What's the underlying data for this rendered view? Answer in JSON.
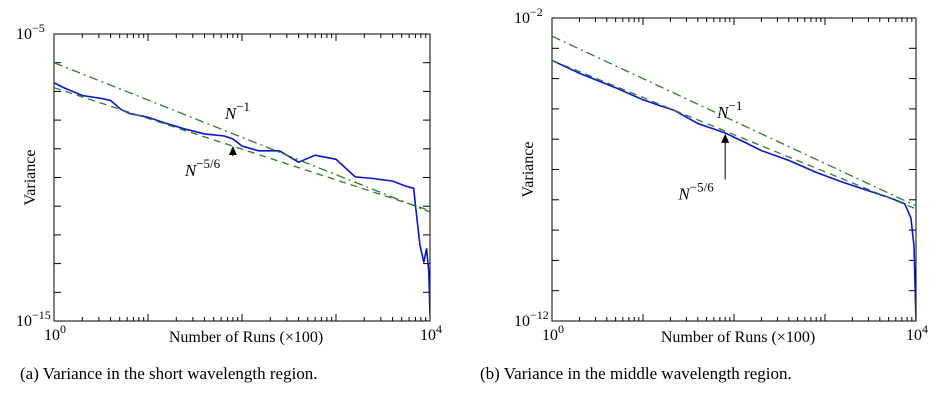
{
  "chart_data": [
    {
      "type": "line",
      "xlabel": "Number of Runs (×100)",
      "ylabel": "Variance",
      "xscale": "log",
      "yscale": "log",
      "xlim": [
        1,
        10000
      ],
      "ylim": [
        1e-15,
        1e-05
      ],
      "x_ticks": [
        {
          "base": "10",
          "exp": "0"
        },
        {
          "base": "10",
          "exp": "4"
        }
      ],
      "y_ticks": [
        {
          "base": "10",
          "exp": "−5"
        },
        {
          "base": "10",
          "exp": "−15"
        }
      ],
      "series": [
        {
          "role": "measured",
          "color": "#0a14d8",
          "style": "solid",
          "x": [
            1,
            1.3,
            2,
            3.3,
            4,
            5.2,
            6.4,
            10,
            16,
            25,
            40,
            65,
            80,
            100,
            150,
            250,
            400,
            600,
            1000,
            1600,
            2500,
            4000,
            5500,
            6700,
            7000,
            7800,
            8600,
            9200,
            9700,
            10000
          ],
          "y": [
            2e-07,
            1.3e-07,
            7.2e-08,
            5.6e-08,
            4.8e-08,
            2.3e-08,
            1.7e-08,
            1.25e-08,
            7.5e-09,
            4.8e-09,
            3.3e-09,
            2.8e-09,
            2.2e-09,
            1.25e-09,
            8.5e-10,
            8.5e-10,
            3.4e-10,
            6e-10,
            4.3e-10,
            1.05e-10,
            9.2e-11,
            7.5e-11,
            5e-11,
            4.2e-11,
            1.1e-11,
            4.5e-13,
            1.1e-13,
            3.4e-13,
            5e-14,
            1.5e-15
          ]
        },
        {
          "role": "N^-1 reference",
          "color": "#2a7d2a",
          "style": "dash-dot",
          "x": [
            1,
            10000
          ],
          "y": [
            1e-06,
            6.3e-12
          ]
        },
        {
          "role": "N^-5/6 reference",
          "color": "#2a7d2a",
          "style": "dashed",
          "x": [
            1,
            10000
          ],
          "y": [
            1.35e-07,
            7e-12
          ]
        }
      ],
      "annotations": [
        {
          "base": "N",
          "exp": "−1",
          "x": 80,
          "y": 1.8e-08,
          "arrow": false
        },
        {
          "base": "N",
          "exp": "−5/6",
          "x": 30,
          "y": 1.8e-10,
          "arrow": true,
          "arrow_to": {
            "x": 80,
            "y": 1.25e-09
          }
        }
      ]
    },
    {
      "type": "line",
      "xlabel": "Number of Runs (×100)",
      "ylabel": "Variance",
      "xscale": "log",
      "yscale": "log",
      "xlim": [
        1,
        10000
      ],
      "ylim": [
        1e-12,
        0.01
      ],
      "x_ticks": [
        {
          "base": "10",
          "exp": "0"
        },
        {
          "base": "10",
          "exp": "4"
        }
      ],
      "y_ticks": [
        {
          "base": "10",
          "exp": "−2"
        },
        {
          "base": "10",
          "exp": "−12"
        }
      ],
      "series": [
        {
          "role": "measured",
          "color": "#0a14d8",
          "style": "solid",
          "x": [
            1,
            2,
            5,
            10,
            15,
            22,
            40,
            80,
            130,
            200,
            400,
            800,
            1500,
            3000,
            5000,
            7500,
            8800,
            9500,
            10000
          ],
          "y": [
            0.0004,
            0.00015,
            5e-05,
            2e-05,
            1.3e-05,
            9e-06,
            3.3e-06,
            1.6e-06,
            8e-07,
            4.2e-07,
            2e-07,
            8e-08,
            4e-08,
            2e-08,
            1.2e-08,
            7.5e-09,
            2.5e-09,
            3e-10,
            1e-12
          ]
        },
        {
          "role": "N^-1 reference",
          "color": "#2a7d2a",
          "style": "dash-dot",
          "x": [
            1,
            10000
          ],
          "y": [
            0.0025,
            6.3e-09
          ]
        },
        {
          "role": "N^-5/6 reference",
          "color": "#2a7d2a",
          "style": "dashed",
          "x": [
            1,
            10000
          ],
          "y": [
            0.0004,
            5e-09
          ]
        }
      ],
      "annotations": [
        {
          "base": "N",
          "exp": "−1",
          "x": 80,
          "y": 8e-06,
          "arrow": false
        },
        {
          "base": "N",
          "exp": "−5/6",
          "x": 30,
          "y": 1.6e-08,
          "arrow": true,
          "arrow_to": {
            "x": 80,
            "y": 1.5e-06
          }
        }
      ]
    }
  ],
  "captions": [
    "(a) Variance in the short wavelength region.",
    "(b) Variance in the middle wavelength region."
  ]
}
